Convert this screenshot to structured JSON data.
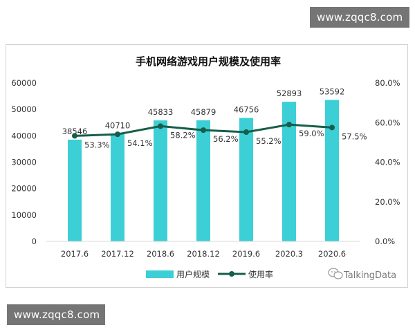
{
  "watermarks": {
    "top": "www.zqqc8.com",
    "bottom": "www.zqqc8.com"
  },
  "brand": {
    "name": "TalkingData",
    "icon": "wechat-icon"
  },
  "colors": {
    "bar": "#3ccfd6",
    "line": "#165e4a",
    "text": "#333333",
    "axis": "#d9d9d9"
  },
  "chart_data": {
    "type": "bar",
    "title": "手机网络游戏用户规模及使用率",
    "categories": [
      "2017.6",
      "2017.12",
      "2018.6",
      "2018.12",
      "2019.6",
      "2020.3",
      "2020.6"
    ],
    "series": [
      {
        "name": "用户规模",
        "type": "bar",
        "axis": "left",
        "values": [
          38546,
          40710,
          45833,
          45879,
          46756,
          52893,
          53592
        ],
        "labels": [
          "38546",
          "40710",
          "45833",
          "45879",
          "46756",
          "52893",
          "53592"
        ]
      },
      {
        "name": "使用率",
        "type": "line",
        "axis": "right",
        "values": [
          53.3,
          54.1,
          58.2,
          56.2,
          55.2,
          59.0,
          57.5
        ],
        "labels": [
          "53.3%",
          "54.1%",
          "58.2%",
          "56.2%",
          "55.2%",
          "59.0%",
          "57.5%"
        ]
      }
    ],
    "ylim_left": [
      0,
      60000
    ],
    "yticks_left": [
      "0",
      "10000",
      "20000",
      "30000",
      "40000",
      "50000",
      "60000"
    ],
    "ylim_right": [
      0,
      80
    ],
    "yticks_right": [
      "0.0%",
      "20.0%",
      "40.0%",
      "60.0%",
      "80.0%"
    ],
    "grid": false,
    "legend_position": "bottom"
  }
}
